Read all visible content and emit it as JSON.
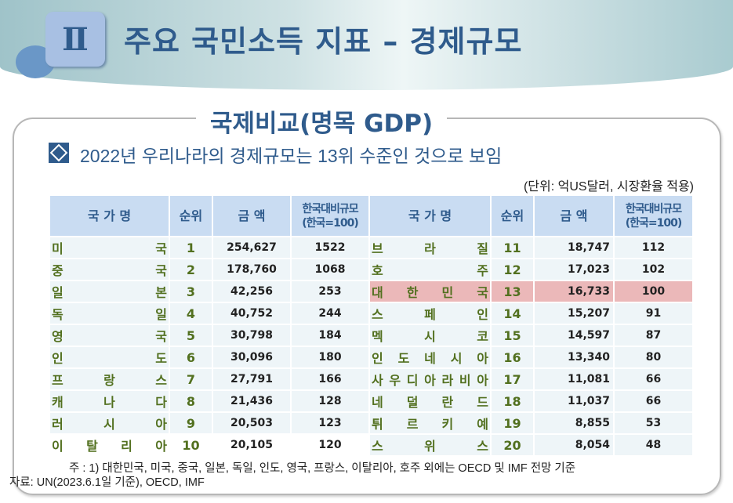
{
  "header": {
    "section_numeral": "Ⅱ",
    "title": "주요 국민소득 지표 – 경제규모"
  },
  "subtitle": "국제비교(명목 GDP)",
  "headline": "2022년 우리나라의 경제규모는 13위 수준인 것으로 보임",
  "unit": "(단위: 억US달러, 시장환율 적용)",
  "columns": {
    "left": [
      "국 가 명",
      "순위",
      "금 액",
      "한국대비규모\n(한국=100)"
    ],
    "right": [
      "국 가 명",
      "순위",
      "금 액",
      "한국대비규모\n(한국=100)"
    ]
  },
  "highlight_color": "#ebb8b9",
  "rows_left": [
    {
      "name": "미국",
      "rank": "1",
      "amount": "254,627",
      "ratio": "1522"
    },
    {
      "name": "중국",
      "rank": "2",
      "amount": "178,760",
      "ratio": "1068"
    },
    {
      "name": "일본",
      "rank": "3",
      "amount": "42,256",
      "ratio": "253"
    },
    {
      "name": "독일",
      "rank": "4",
      "amount": "40,752",
      "ratio": "244"
    },
    {
      "name": "영국",
      "rank": "5",
      "amount": "30,798",
      "ratio": "184"
    },
    {
      "name": "인도",
      "rank": "6",
      "amount": "30,096",
      "ratio": "180"
    },
    {
      "name": "프랑스",
      "rank": "7",
      "amount": "27,791",
      "ratio": "166"
    },
    {
      "name": "캐나다",
      "rank": "8",
      "amount": "21,436",
      "ratio": "128"
    },
    {
      "name": "러시아",
      "rank": "9",
      "amount": "20,503",
      "ratio": "123"
    },
    {
      "name": "이탈리아",
      "rank": "10",
      "amount": "20,105",
      "ratio": "120"
    }
  ],
  "rows_right": [
    {
      "name": "브라질",
      "rank": "11",
      "amount": "18,747",
      "ratio": "112"
    },
    {
      "name": "호주",
      "rank": "12",
      "amount": "17,023",
      "ratio": "102"
    },
    {
      "name": "대한민국",
      "rank": "13",
      "amount": "16,733",
      "ratio": "100",
      "highlight": true
    },
    {
      "name": "스페인",
      "rank": "14",
      "amount": "15,207",
      "ratio": "91"
    },
    {
      "name": "멕시코",
      "rank": "15",
      "amount": "14,597",
      "ratio": "87"
    },
    {
      "name": "인도네시아",
      "rank": "16",
      "amount": "13,340",
      "ratio": "80"
    },
    {
      "name": "사우디아라비아",
      "rank": "17",
      "amount": "11,081",
      "ratio": "66"
    },
    {
      "name": "네덜란드",
      "rank": "18",
      "amount": "11,037",
      "ratio": "66"
    },
    {
      "name": "튀르키예",
      "rank": "19",
      "amount": "8,855",
      "ratio": "53"
    },
    {
      "name": "스위스",
      "rank": "20",
      "amount": "8,054",
      "ratio": "48"
    }
  ],
  "note": "주 : 1) 대한민국, 미국, 중국, 일본, 독일, 인도, 영국, 프랑스, 이탈리아, 호주 외에는 OECD 및 IMF 전망 기준",
  "source": "자료: UN(2023.6.1일 기준), OECD, IMF"
}
